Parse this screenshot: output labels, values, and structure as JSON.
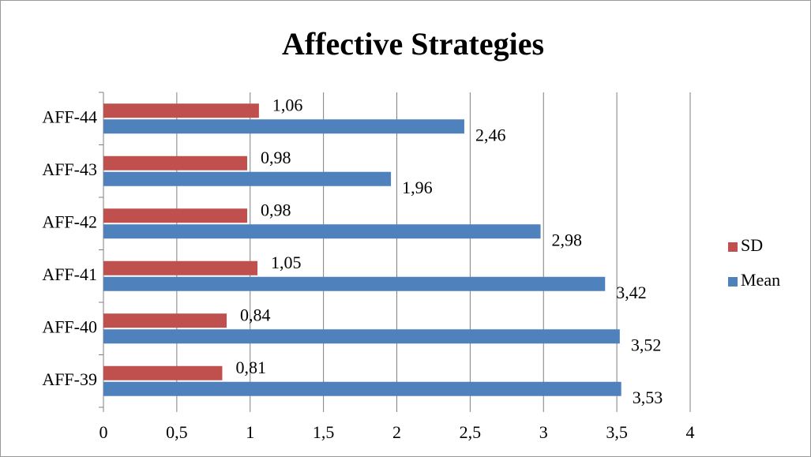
{
  "chart_data": {
    "type": "bar",
    "orientation": "horizontal",
    "title": "Affective Strategies",
    "categories": [
      "AFF-44",
      "AFF-43",
      "AFF-42",
      "AFF-41",
      "AFF-40",
      "AFF-39"
    ],
    "series": [
      {
        "name": "SD",
        "color": "#c0504d",
        "values": [
          1.06,
          0.98,
          0.98,
          1.05,
          0.84,
          0.81
        ],
        "value_labels": [
          "1,06",
          "0,98",
          "0,98",
          "1,05",
          "0,84",
          "0,81"
        ]
      },
      {
        "name": "Mean",
        "color": "#4f81bd",
        "values": [
          2.46,
          1.96,
          2.98,
          3.42,
          3.52,
          3.53
        ],
        "value_labels": [
          "2,46",
          "1,96",
          "2,98",
          "3,42",
          "3,52",
          "3,53"
        ]
      }
    ],
    "xlim": [
      0,
      4
    ],
    "xticks": [
      0,
      {
        "value": 0.5,
        "label": "0,5"
      },
      1,
      {
        "value": 1.5,
        "label": "1,5"
      },
      2,
      {
        "value": 2.5,
        "label": "2,5"
      },
      3,
      {
        "value": 3.5,
        "label": "3,5"
      },
      4
    ],
    "grid": true,
    "legend": "right"
  }
}
